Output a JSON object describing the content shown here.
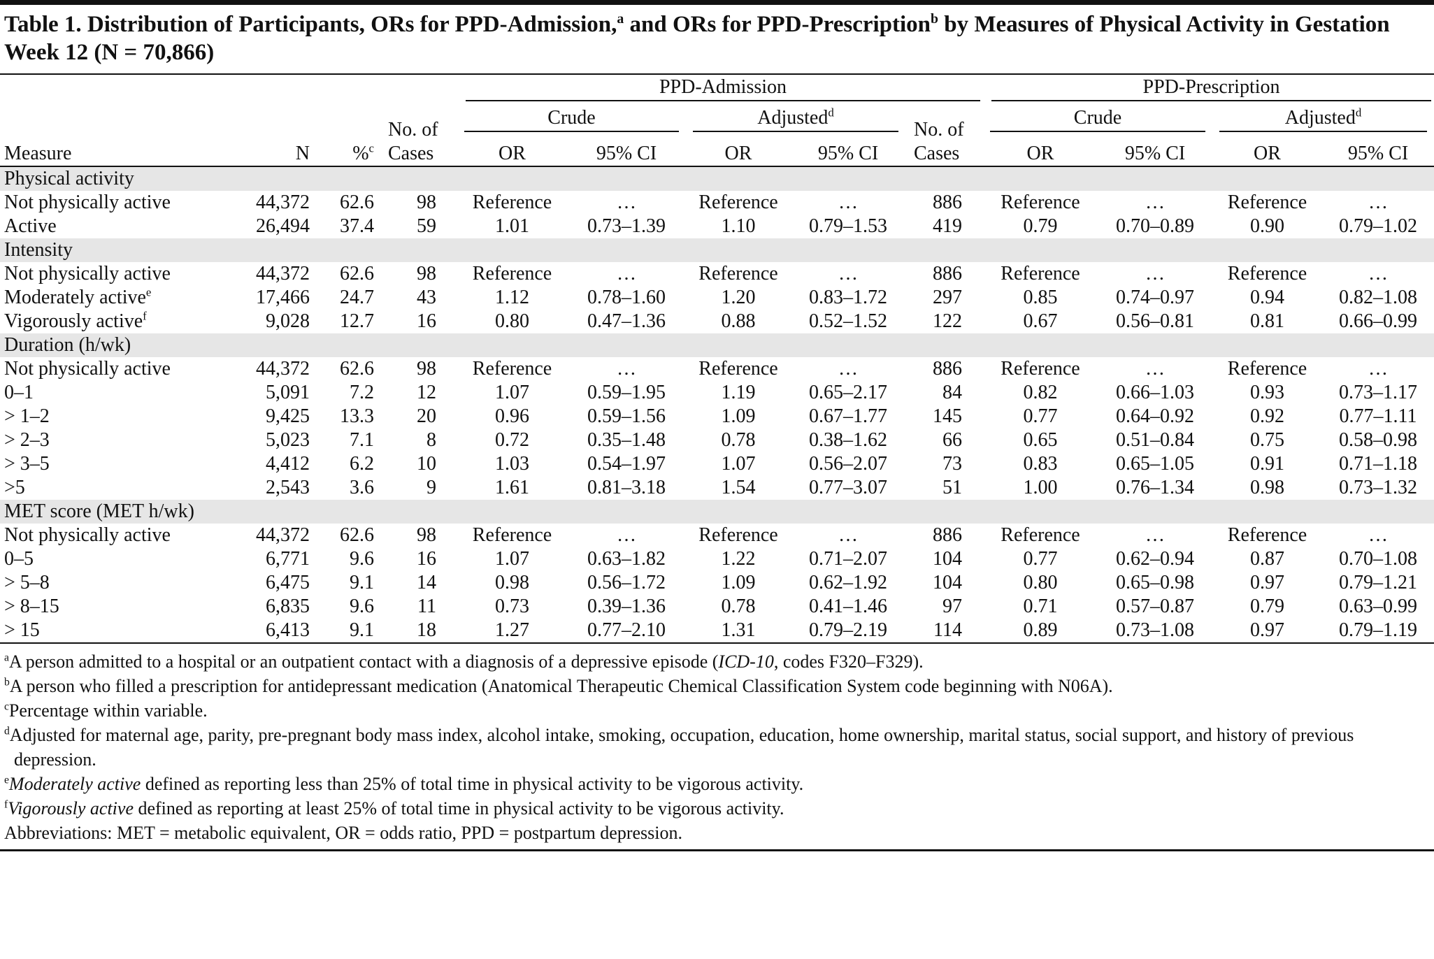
{
  "title": [
    {
      "text": "Table 1. Distribution of Participants, ORs for PPD-Admission,"
    },
    {
      "sup": "a"
    },
    {
      "text": " and ORs for PPD-Prescription"
    },
    {
      "sup": "b"
    },
    {
      "text": " by Measures of Physical Activity in Gestation Week 12 (N = 70,866)"
    }
  ],
  "header": {
    "measure": "Measure",
    "n": "N",
    "pct": "%",
    "pct_sup": "c",
    "groups": [
      {
        "title": "PPD-Admission",
        "cases": "No. of Cases",
        "subgroups": [
          {
            "label": "Crude",
            "cols": [
              "OR",
              "95% CI"
            ]
          },
          {
            "label": "Adjusted",
            "sup": "d",
            "cols": [
              "OR",
              "95% CI"
            ]
          }
        ]
      },
      {
        "title": "PPD-Prescription",
        "cases": "No. of Cases",
        "subgroups": [
          {
            "label": "Crude",
            "cols": [
              "OR",
              "95% CI"
            ]
          },
          {
            "label": "Adjusted",
            "sup": "d",
            "cols": [
              "OR",
              "95% CI"
            ]
          }
        ]
      }
    ]
  },
  "sections": [
    {
      "label": "Physical activity",
      "rows": [
        {
          "label": "Not physically active",
          "cells": [
            "44,372",
            "62.6",
            "98",
            "Reference",
            "…",
            "Reference",
            "…",
            "886",
            "Reference",
            "…",
            "Reference",
            "…"
          ]
        },
        {
          "label": "Active",
          "cells": [
            "26,494",
            "37.4",
            "59",
            "1.01",
            "0.73–1.39",
            "1.10",
            "0.79–1.53",
            "419",
            "0.79",
            "0.70–0.89",
            "0.90",
            "0.79–1.02"
          ]
        }
      ]
    },
    {
      "label": "Intensity",
      "rows": [
        {
          "label": "Not physically active",
          "cells": [
            "44,372",
            "62.6",
            "98",
            "Reference",
            "…",
            "Reference",
            "…",
            "886",
            "Reference",
            "…",
            "Reference",
            "…"
          ]
        },
        {
          "label": "Moderately active",
          "sup": "e",
          "cells": [
            "17,466",
            "24.7",
            "43",
            "1.12",
            "0.78–1.60",
            "1.20",
            "0.83–1.72",
            "297",
            "0.85",
            "0.74–0.97",
            "0.94",
            "0.82–1.08"
          ]
        },
        {
          "label": "Vigorously active",
          "sup": "f",
          "cells": [
            "9,028",
            "12.7",
            "16",
            "0.80",
            "0.47–1.36",
            "0.88",
            "0.52–1.52",
            "122",
            "0.67",
            "0.56–0.81",
            "0.81",
            "0.66–0.99"
          ]
        }
      ]
    },
    {
      "label": "Duration (h/wk)",
      "rows": [
        {
          "label": "Not physically active",
          "cells": [
            "44,372",
            "62.6",
            "98",
            "Reference",
            "…",
            "Reference",
            "…",
            "886",
            "Reference",
            "…",
            "Reference",
            "…"
          ]
        },
        {
          "label": "0–1",
          "cells": [
            "5,091",
            "7.2",
            "12",
            "1.07",
            "0.59–1.95",
            "1.19",
            "0.65–2.17",
            "84",
            "0.82",
            "0.66–1.03",
            "0.93",
            "0.73–1.17"
          ]
        },
        {
          "label": "> 1–2",
          "cells": [
            "9,425",
            "13.3",
            "20",
            "0.96",
            "0.59–1.56",
            "1.09",
            "0.67–1.77",
            "145",
            "0.77",
            "0.64–0.92",
            "0.92",
            "0.77–1.11"
          ]
        },
        {
          "label": "> 2–3",
          "cells": [
            "5,023",
            "7.1",
            "8",
            "0.72",
            "0.35–1.48",
            "0.78",
            "0.38–1.62",
            "66",
            "0.65",
            "0.51–0.84",
            "0.75",
            "0.58–0.98"
          ]
        },
        {
          "label": "> 3–5",
          "cells": [
            "4,412",
            "6.2",
            "10",
            "1.03",
            "0.54–1.97",
            "1.07",
            "0.56–2.07",
            "73",
            "0.83",
            "0.65–1.05",
            "0.91",
            "0.71–1.18"
          ]
        },
        {
          "label": ">5",
          "cells": [
            "2,543",
            "3.6",
            "9",
            "1.61",
            "0.81–3.18",
            "1.54",
            "0.77–3.07",
            "51",
            "1.00",
            "0.76–1.34",
            "0.98",
            "0.73–1.32"
          ]
        }
      ]
    },
    {
      "label": "MET score (MET h/wk)",
      "rows": [
        {
          "label": "Not physically active",
          "cells": [
            "44,372",
            "62.6",
            "98",
            "Reference",
            "…",
            "Reference",
            "…",
            "886",
            "Reference",
            "…",
            "Reference",
            "…"
          ]
        },
        {
          "label": "0–5",
          "cells": [
            "6,771",
            "9.6",
            "16",
            "1.07",
            "0.63–1.82",
            "1.22",
            "0.71–2.07",
            "104",
            "0.77",
            "0.62–0.94",
            "0.87",
            "0.70–1.08"
          ]
        },
        {
          "label": "> 5–8",
          "cells": [
            "6,475",
            "9.1",
            "14",
            "0.98",
            "0.56–1.72",
            "1.09",
            "0.62–1.92",
            "104",
            "0.80",
            "0.65–0.98",
            "0.97",
            "0.79–1.21"
          ]
        },
        {
          "label": "> 8–15",
          "cells": [
            "6,835",
            "9.6",
            "11",
            "0.73",
            "0.39–1.36",
            "0.78",
            "0.41–1.46",
            "97",
            "0.71",
            "0.57–0.87",
            "0.79",
            "0.63–0.99"
          ]
        },
        {
          "label": "> 15",
          "cells": [
            "6,413",
            "9.1",
            "18",
            "1.27",
            "0.77–2.10",
            "1.31",
            "0.79–2.19",
            "114",
            "0.89",
            "0.73–1.08",
            "0.97",
            "0.79–1.19"
          ]
        }
      ]
    }
  ],
  "footnotes": [
    {
      "sup": "a",
      "parts": [
        {
          "text": "A person admitted to a hospital or an outpatient contact with a diagnosis of a depressive episode ("
        },
        {
          "italic": "ICD-10"
        },
        {
          "text": ", codes F320–F329)."
        }
      ]
    },
    {
      "sup": "b",
      "parts": [
        {
          "text": "A person who filled a prescription for antidepressant medication (Anatomical Therapeutic Chemical Classification System code beginning with N06A)."
        }
      ]
    },
    {
      "sup": "c",
      "parts": [
        {
          "text": "Percentage within variable."
        }
      ]
    },
    {
      "sup": "d",
      "parts": [
        {
          "text": "Adjusted for maternal age, parity, pre-pregnant body mass index, alcohol intake, smoking, occupation, education, home ownership, marital status, social support, and history of previous depression."
        }
      ]
    },
    {
      "sup": "e",
      "parts": [
        {
          "italic": "Moderately active"
        },
        {
          "text": " defined as reporting less than 25% of total time in physical activity to be vigorous activity."
        }
      ]
    },
    {
      "sup": "f",
      "parts": [
        {
          "italic": "Vigorously active"
        },
        {
          "text": " defined as reporting at least 25% of total time in physical activity to be vigorous activity."
        }
      ]
    },
    {
      "parts": [
        {
          "text": "Abbreviations: MET = metabolic equivalent, OR = odds ratio, PPD = postpartum depression."
        }
      ]
    }
  ]
}
